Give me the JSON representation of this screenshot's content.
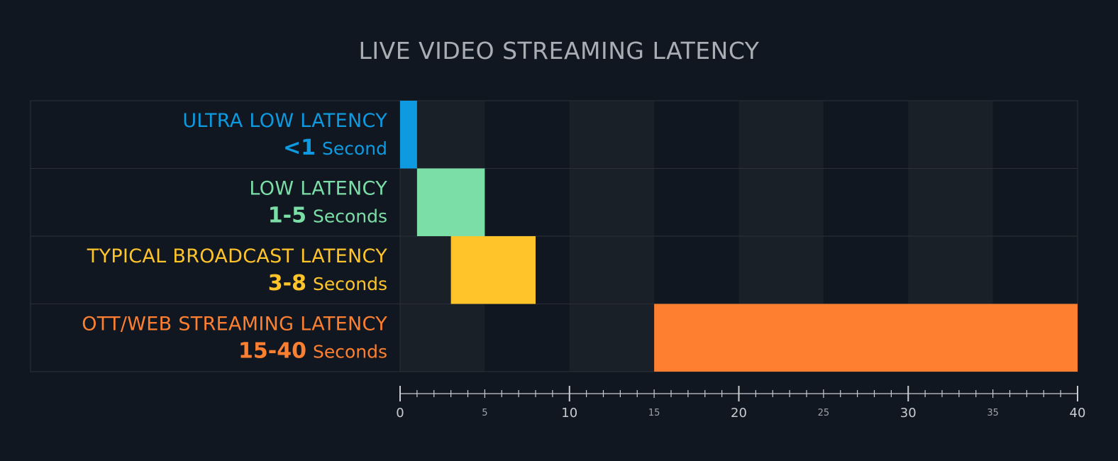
{
  "chart_data": {
    "type": "bar",
    "subtype": "horizontal-range",
    "title": "LIVE VIDEO STREAMING LATENCY",
    "xlim": [
      0,
      40
    ],
    "major_ticks": [
      "0",
      "10",
      "20",
      "30",
      "40"
    ],
    "minor_labeled_ticks": [
      "5",
      "15",
      "25",
      "35"
    ],
    "categories": [
      {
        "label": "ULTRA LOW LATENCY",
        "value_text": "<1",
        "unit": "Second",
        "start": 0,
        "end": 1,
        "color": "#0d9ae0"
      },
      {
        "label": "LOW LATENCY",
        "value_text": "1-5",
        "unit": "Seconds",
        "start": 1,
        "end": 5,
        "color": "#7bdea7"
      },
      {
        "label": "TYPICAL BROADCAST LATENCY",
        "value_text": "3-8",
        "unit": "Seconds",
        "start": 3,
        "end": 8,
        "color": "#fec42a"
      },
      {
        "label": "OTT/WEB STREAMING LATENCY",
        "value_text": "15-40",
        "unit": "Seconds",
        "start": 15,
        "end": 40,
        "color": "#fe7f2f"
      }
    ],
    "colors": {
      "background": "#111720",
      "band": "#1a2028",
      "grid_line": "#2b3038",
      "axis": "#c9ccd0",
      "title": "#a9aeb4"
    }
  }
}
